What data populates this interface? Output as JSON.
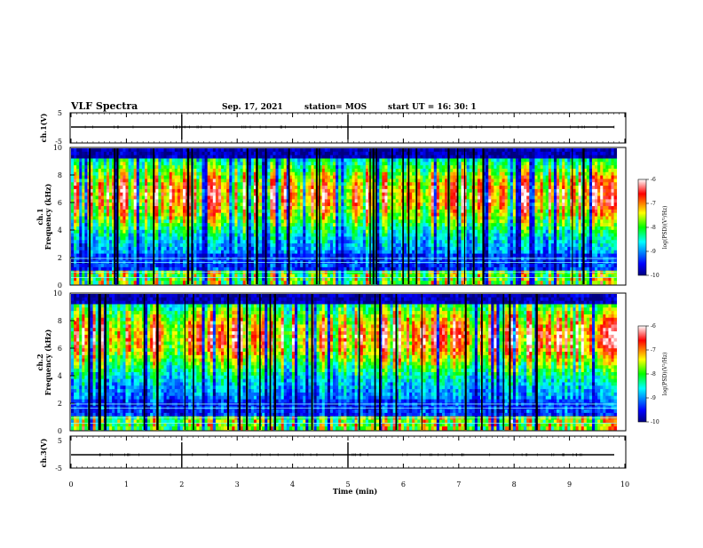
{
  "header": {
    "title": "VLF Spectra",
    "date": "Sep. 17, 2021",
    "station": "station= MOS",
    "start_ut": "start  UT =   16: 30: 1"
  },
  "chart_data": [
    {
      "type": "line",
      "name": "ch1-waveform",
      "ylabel": "ch.1(V)",
      "ylim": [
        -5,
        5
      ],
      "yticks": [
        "5",
        "-5"
      ],
      "x": [
        0,
        10
      ],
      "values": [
        0,
        0
      ]
    },
    {
      "type": "heatmap",
      "name": "ch1-spectrogram",
      "ylabel": "ch.1\nFrequency (kHz)",
      "ylim": [
        0,
        10
      ],
      "yticks": [
        "0",
        "2",
        "4",
        "6",
        "8",
        "10"
      ],
      "xlim": [
        0,
        9.85
      ],
      "colorbar": {
        "label": "log(PSD)(V²/Hz)",
        "range": [
          -10,
          -6
        ],
        "ticks": [
          "-6",
          "-7",
          "-8",
          "-9",
          "-10"
        ]
      }
    },
    {
      "type": "heatmap",
      "name": "ch2-spectrogram",
      "ylabel": "ch.2\nFrequency (kHz)",
      "ylim": [
        0,
        10
      ],
      "yticks": [
        "0",
        "2",
        "4",
        "6",
        "8",
        "10"
      ],
      "xlim": [
        0,
        9.85
      ],
      "colorbar": {
        "label": "log(PSD)(V²/Hz)",
        "range": [
          -10,
          -6
        ],
        "ticks": [
          "-6",
          "-7",
          "-8",
          "-9",
          "-10"
        ]
      }
    },
    {
      "type": "line",
      "name": "ch3-waveform",
      "ylabel": "ch.3(V)",
      "ylim": [
        -5,
        5
      ],
      "yticks": [
        "5",
        "-5"
      ],
      "x": [
        0,
        10
      ],
      "values": [
        0,
        0
      ]
    }
  ],
  "xaxis": {
    "label": "Time (min)",
    "range": [
      0,
      10
    ],
    "ticks": [
      "0",
      "1",
      "2",
      "3",
      "4",
      "5",
      "6",
      "7",
      "8",
      "9",
      "10"
    ]
  },
  "labels": {
    "ch1_v": "ch.1(V)",
    "ch1_chan": "ch.1",
    "freq": "Frequency (kHz)",
    "ch2_chan": "ch.2",
    "ch3_v": "ch.3(V)",
    "cb_label": "log(PSD)(V²/Hz)"
  },
  "colors": {
    "colormap": [
      "#000080",
      "#0000ff",
      "#00ffff",
      "#00ff00",
      "#ffff00",
      "#ff0000",
      "#ffffff"
    ]
  }
}
